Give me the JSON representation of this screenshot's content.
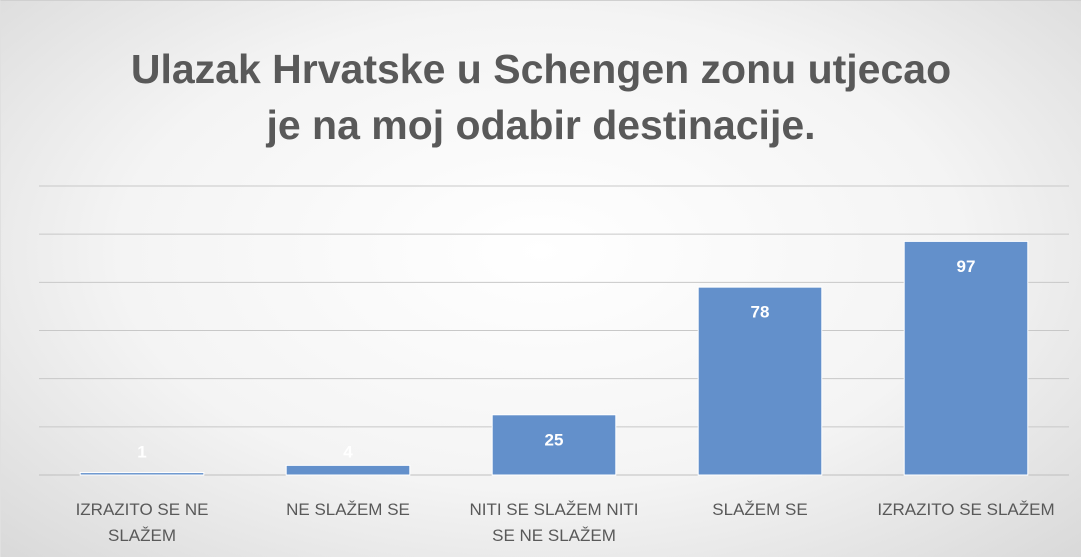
{
  "chart_data": {
    "type": "bar",
    "title": "Ulazak Hrvatske u Schengen zonu utjecao je na moj odabir destinacije.",
    "categories": [
      "IZRAZITO SE NE SLAŽEM",
      "NE SLAŽEM SE",
      "NITI SE SLAŽEM NITI SE NE SLAŽEM",
      "SLAŽEM SE",
      "IZRAZITO SE SLAŽEM"
    ],
    "values": [
      1,
      4,
      25,
      78,
      97
    ],
    "color": "#6390cb",
    "ylim": [
      0,
      120
    ],
    "yticks": [
      0,
      20,
      40,
      60,
      80,
      100,
      120
    ],
    "grid": true
  }
}
